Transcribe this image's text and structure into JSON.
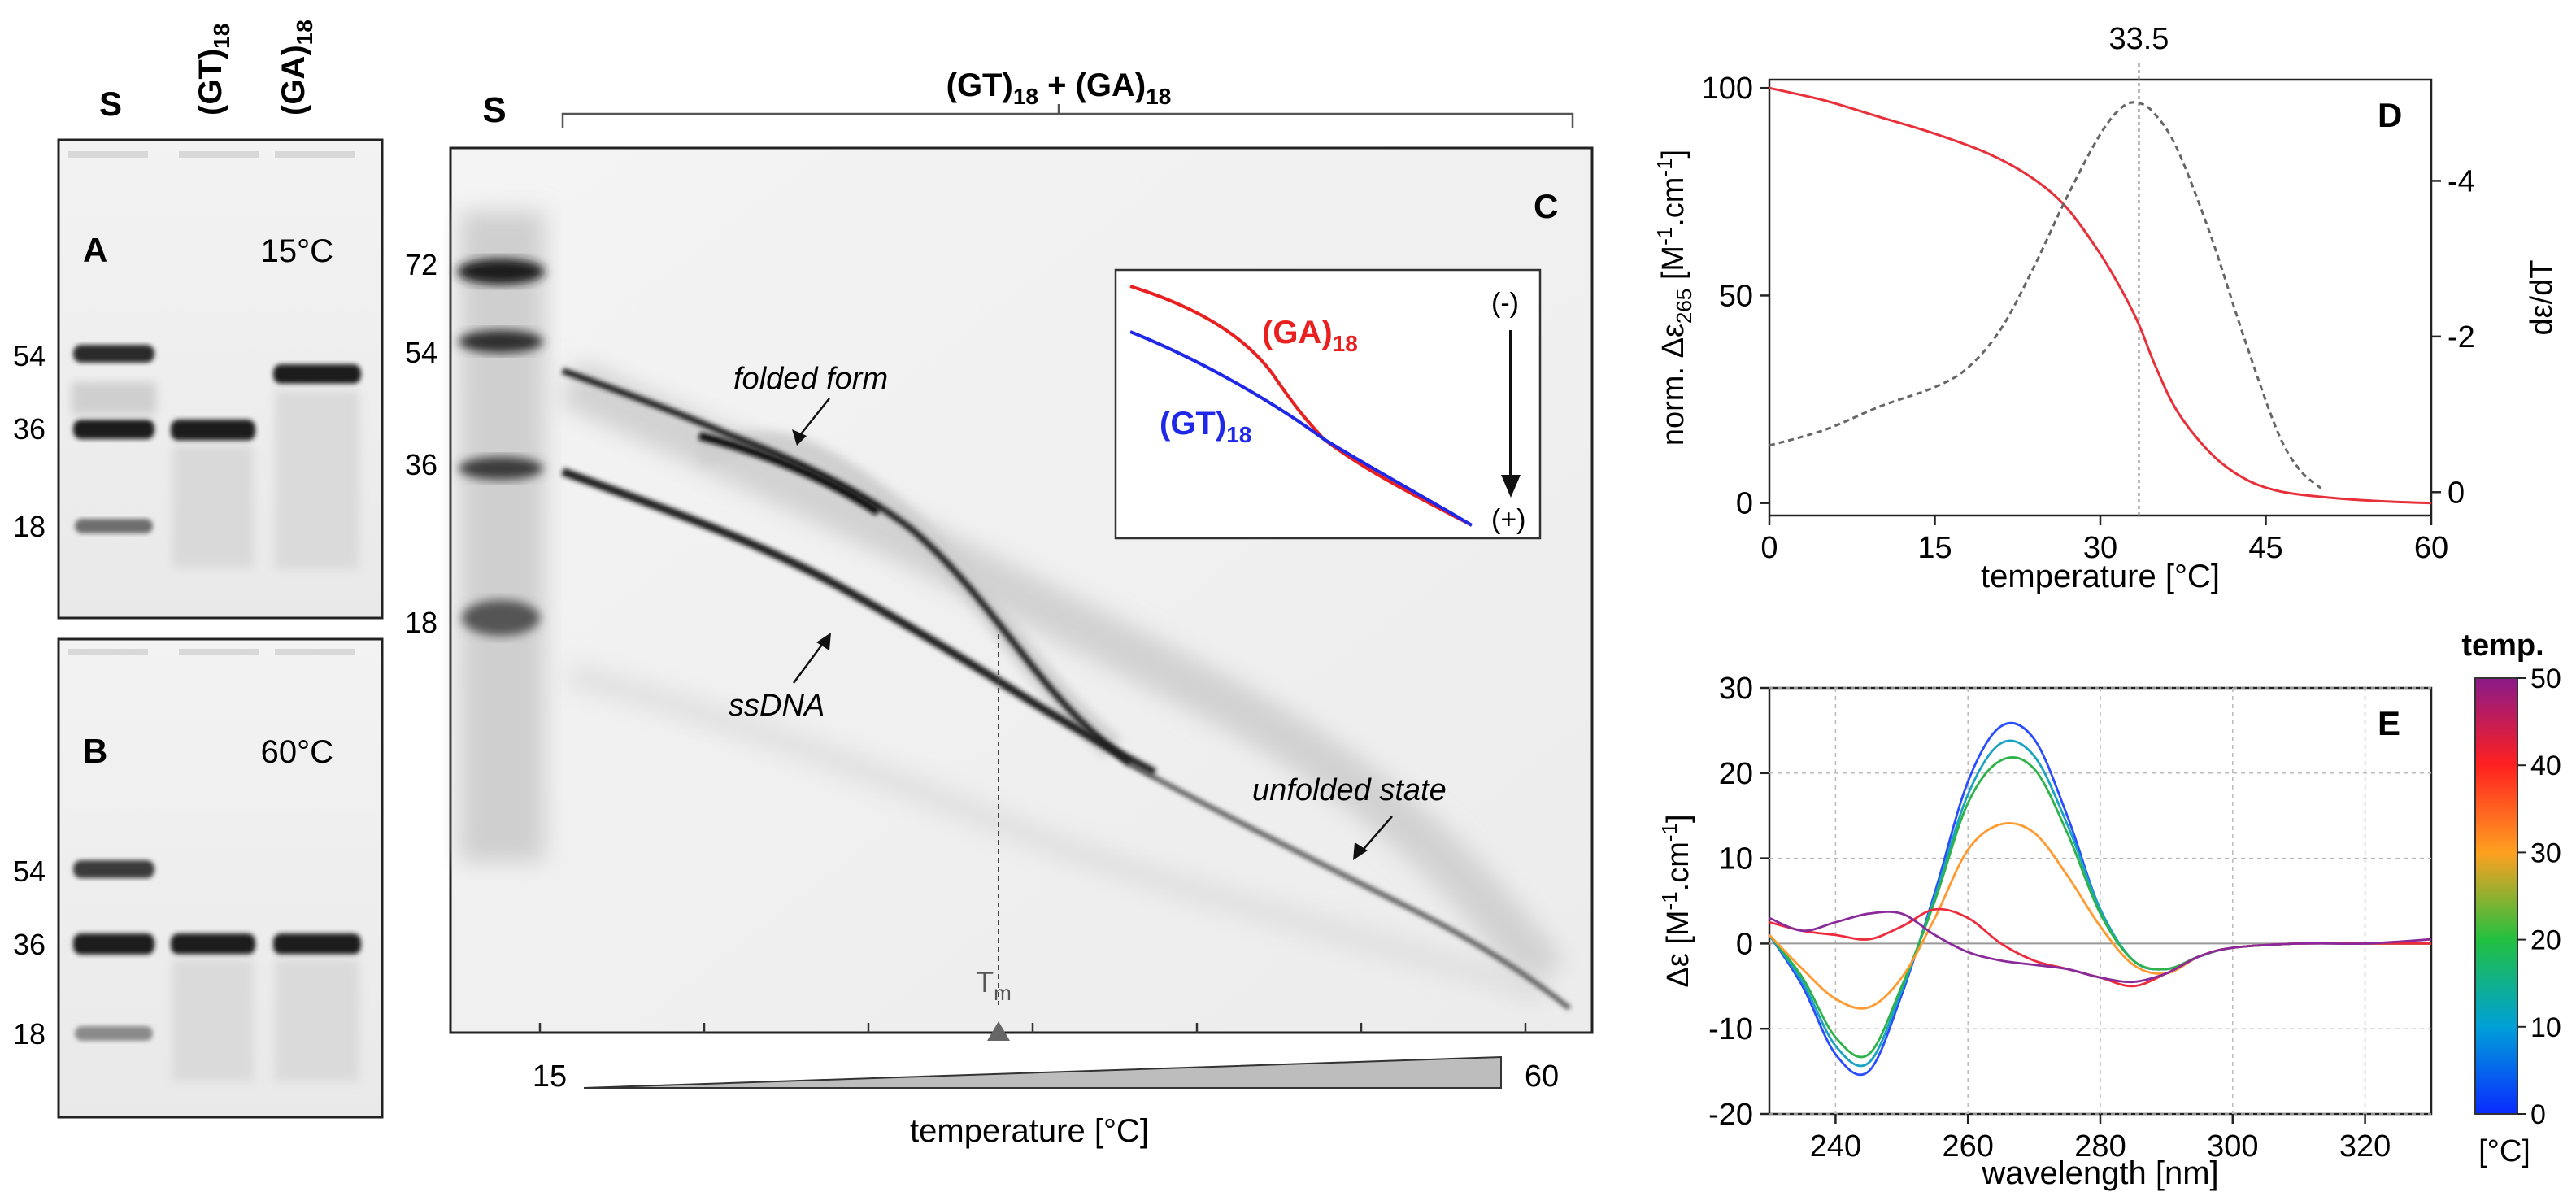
{
  "panel_a": {
    "letter": "A",
    "temp": "15°C",
    "lanes": [
      {
        "base": "S",
        "sub": ""
      },
      {
        "base": "(GT)",
        "sub": "18"
      },
      {
        "base": "(GA)",
        "sub": "18"
      }
    ],
    "markers": [
      "54",
      "36",
      "18"
    ]
  },
  "panel_b": {
    "letter": "B",
    "temp": "60°C",
    "markers": [
      "54",
      "36",
      "18"
    ]
  },
  "panel_c": {
    "letter": "C",
    "lane_s": "S",
    "header_a": "(GT)",
    "header_a_sub": "18",
    "header_plus": " + ",
    "header_b": "(GA)",
    "header_b_sub": "18",
    "markers": [
      "72",
      "54",
      "36",
      "18"
    ],
    "annotations": {
      "folded": "folded form",
      "ssdna": "ssDNA",
      "unfolded": "unfolded state",
      "tm": "T",
      "tm_sub": "m"
    },
    "inset": {
      "ga": "(GA)",
      "ga_sub": "18",
      "gt": "(GT)",
      "gt_sub": "18",
      "minus": "(-)",
      "plus": "(+)"
    },
    "gradient": {
      "start": "15",
      "end": "60",
      "xlabel": "temperature [°C]"
    }
  },
  "chart_data": [
    {
      "type": "line",
      "panel": "D",
      "title": "33.5",
      "xlabel": "temperature [°C]",
      "ylabel": "norm. Δε265 [M-1.cm-1]",
      "ylabel_parts": {
        "a": "norm. Δε",
        "sub": "265",
        "b": " [M",
        "sup1": "-1",
        "c": ".cm",
        "sup2": "-1",
        "d": "]"
      },
      "y2label": "dε/dT",
      "xlim": [
        0,
        60
      ],
      "ylim": [
        -3,
        102
      ],
      "y2lim": [
        0.3,
        -5.3
      ],
      "xticks": [
        "0",
        "15",
        "30",
        "45",
        "60"
      ],
      "yticks": [
        "0",
        "50",
        "100"
      ],
      "y2ticks": [
        "0",
        "-2",
        "-4"
      ],
      "vline": 33.5,
      "series": [
        {
          "name": "norm. Δε265",
          "axis": "left",
          "color": "#e8303a",
          "x": [
            0,
            5,
            10,
            15,
            20,
            24,
            27,
            30,
            32,
            33.5,
            35,
            37,
            40,
            43,
            46,
            50,
            55,
            60
          ],
          "y": [
            100,
            97,
            93,
            89,
            84,
            78,
            71,
            60,
            51,
            43,
            33,
            22,
            12,
            6,
            3,
            1.5,
            0.5,
            0
          ]
        },
        {
          "name": "dε/dT",
          "axis": "right",
          "color": "#666666",
          "x": [
            0,
            5,
            10,
            15,
            18,
            21,
            24,
            27,
            30,
            32,
            33.5,
            35,
            37,
            40,
            43,
            46,
            48,
            50
          ],
          "y": [
            -0.6,
            -0.8,
            -1.1,
            -1.35,
            -1.6,
            -2.1,
            -2.9,
            -3.8,
            -4.6,
            -4.95,
            -5.0,
            -4.85,
            -4.4,
            -3.3,
            -2.0,
            -0.8,
            -0.3,
            -0.05
          ]
        }
      ]
    },
    {
      "type": "line",
      "panel": "E",
      "xlabel": "wavelength [nm]",
      "ylabel": "Δε [M-1.cm-1]",
      "ylabel_parts": {
        "a": "Δε [M",
        "sup1": "-1",
        "c": ".cm",
        "sup2": "-1",
        "d": "]"
      },
      "xlim": [
        230,
        330
      ],
      "ylim": [
        -20,
        30
      ],
      "xticks": [
        "240",
        "260",
        "280",
        "300",
        "320"
      ],
      "yticks": [
        "-20",
        "-10",
        "0",
        "10",
        "20",
        "30"
      ],
      "grid": true,
      "colorbar": {
        "title": "temp.",
        "unit": "[°C]",
        "ticks": [
          "0",
          "10",
          "20",
          "30",
          "40",
          "50"
        ],
        "range": [
          0,
          50
        ]
      },
      "series": [
        {
          "name": "5",
          "color": "#2a4dff",
          "x": [
            230,
            235,
            240,
            245,
            250,
            255,
            260,
            265,
            270,
            275,
            280,
            285,
            290,
            295,
            300,
            310,
            320,
            330
          ],
          "y": [
            1,
            -5,
            -13,
            -15,
            -6,
            6,
            19,
            25.5,
            24,
            15,
            4,
            -2,
            -3,
            -1.5,
            -0.5,
            0,
            0,
            0
          ]
        },
        {
          "name": "10",
          "color": "#1aa3c0",
          "x": [
            230,
            235,
            240,
            245,
            250,
            255,
            260,
            265,
            270,
            275,
            280,
            285,
            290,
            295,
            300,
            310,
            320,
            330
          ],
          "y": [
            1,
            -4.5,
            -12,
            -14,
            -5.5,
            5.5,
            17.5,
            23.5,
            22,
            14,
            4,
            -2,
            -3,
            -1.5,
            -0.5,
            0,
            0,
            0
          ]
        },
        {
          "name": "20",
          "color": "#2db34a",
          "x": [
            230,
            235,
            240,
            245,
            250,
            255,
            260,
            265,
            270,
            275,
            280,
            285,
            290,
            295,
            300,
            310,
            320,
            330
          ],
          "y": [
            1,
            -4,
            -11,
            -13,
            -5,
            5,
            16.5,
            21.5,
            20.5,
            13,
            3.5,
            -2,
            -3,
            -1.5,
            -0.5,
            0,
            0,
            0
          ]
        },
        {
          "name": "30",
          "color": "#ff9a30",
          "x": [
            230,
            235,
            240,
            245,
            250,
            255,
            260,
            265,
            270,
            275,
            280,
            285,
            290,
            295,
            300,
            310,
            320,
            330
          ],
          "y": [
            1,
            -3,
            -6.5,
            -7.5,
            -4,
            3,
            11,
            14,
            13,
            8,
            2,
            -2.5,
            -3.5,
            -1.5,
            -0.5,
            0,
            0,
            0
          ]
        },
        {
          "name": "40",
          "color": "#ee2b3c",
          "x": [
            230,
            235,
            240,
            245,
            250,
            255,
            260,
            265,
            270,
            275,
            280,
            285,
            290,
            295,
            300,
            310,
            320,
            330
          ],
          "y": [
            2.5,
            1.5,
            1,
            0.5,
            2,
            4,
            3,
            0,
            -2,
            -3,
            -4,
            -5,
            -3.5,
            -1.5,
            -0.5,
            0,
            0,
            0
          ]
        },
        {
          "name": "50",
          "color": "#8a2a9a",
          "x": [
            230,
            235,
            240,
            245,
            250,
            255,
            260,
            265,
            270,
            275,
            280,
            285,
            290,
            295,
            300,
            310,
            320,
            330
          ],
          "y": [
            3,
            1.5,
            2.5,
            3.5,
            3.5,
            1,
            -1,
            -2,
            -2.5,
            -3,
            -4,
            -4.5,
            -3.5,
            -1.5,
            -0.5,
            0,
            0,
            0.5
          ]
        }
      ]
    }
  ]
}
